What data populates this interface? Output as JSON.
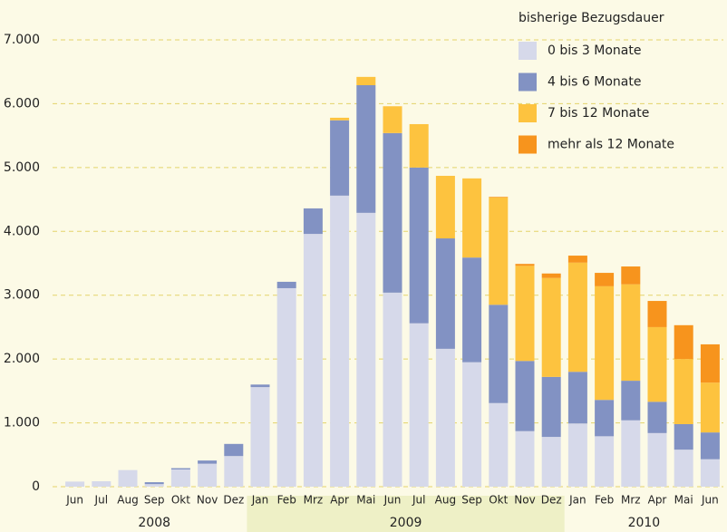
{
  "chart_data": {
    "type": "stacked_bar",
    "legend_title": "bisherige Bezugsdauer",
    "legend_position": "upper right",
    "grid": true,
    "categories": [
      "Jun",
      "Jul",
      "Aug",
      "Sep",
      "Okt",
      "Nov",
      "Dez",
      "Jan",
      "Feb",
      "Mrz",
      "Apr",
      "Mai",
      "Jun",
      "Jul",
      "Aug",
      "Sep",
      "Okt",
      "Nov",
      "Dez",
      "Jan",
      "Feb",
      "Mrz",
      "Apr",
      "Mai",
      "Jun"
    ],
    "years": [
      "2008",
      "2009",
      "2010"
    ],
    "series": [
      {
        "name": "0 bis 3 Monate",
        "color": "#d6d9ea",
        "values": [
          80,
          85,
          260,
          40,
          270,
          360,
          480,
          1560,
          3110,
          3960,
          4560,
          4290,
          3040,
          2560,
          2160,
          1950,
          1310,
          870,
          780,
          990,
          790,
          1040,
          840,
          580,
          430
        ]
      },
      {
        "name": "4 bis 6 Monate",
        "color": "#8292c3",
        "values": [
          0,
          0,
          0,
          30,
          20,
          50,
          190,
          40,
          100,
          400,
          1180,
          2000,
          2500,
          2440,
          1730,
          1640,
          1540,
          1100,
          940,
          810,
          570,
          620,
          490,
          400,
          420
        ]
      },
      {
        "name": "7 bis 12 Monate",
        "color": "#fdc33f",
        "values": [
          0,
          0,
          0,
          0,
          0,
          0,
          0,
          0,
          0,
          0,
          40,
          130,
          420,
          680,
          980,
          1240,
          1680,
          1490,
          1550,
          1710,
          1780,
          1510,
          1170,
          1020,
          780
        ]
      },
      {
        "name": "mehr als 12 Monate",
        "color": "#f7941d",
        "values": [
          0,
          0,
          0,
          0,
          0,
          0,
          0,
          0,
          0,
          0,
          0,
          0,
          0,
          0,
          0,
          0,
          10,
          30,
          70,
          110,
          210,
          280,
          410,
          530,
          600
        ]
      }
    ],
    "ylim": [
      0,
      7000
    ],
    "yticks": [
      0,
      {
        "value": 1000,
        "label": "1.000"
      },
      {
        "value": 2000,
        "label": "2.000"
      },
      {
        "value": 3000,
        "label": "3.000"
      },
      {
        "value": 4000,
        "label": "4.000"
      },
      {
        "value": 5000,
        "label": "5.000"
      },
      {
        "value": 6000,
        "label": "6.000"
      },
      {
        "value": 7000,
        "label": "7.000"
      }
    ]
  }
}
